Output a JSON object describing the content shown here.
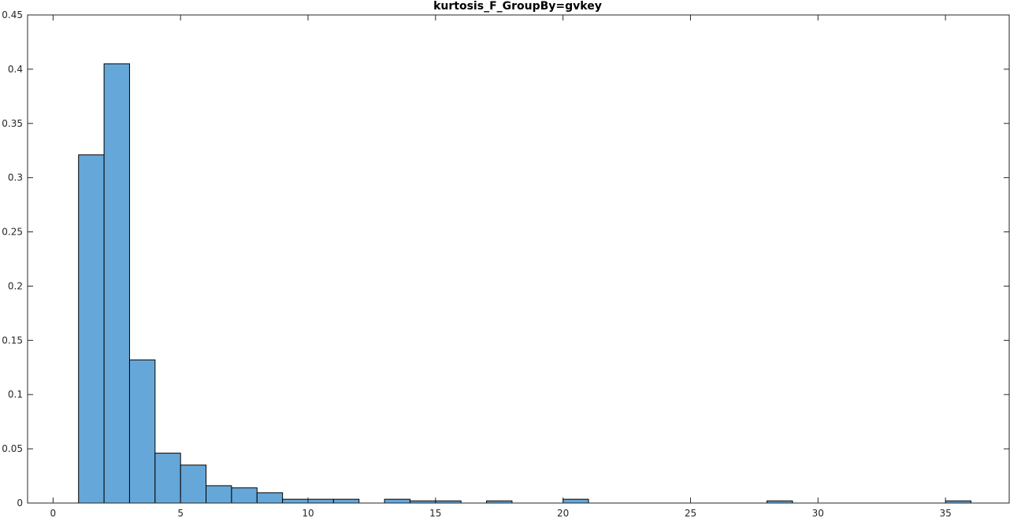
{
  "chart_data": {
    "type": "bar",
    "title": "kurtosis_F_GroupBy=gvkey",
    "xlabel": "",
    "ylabel": "",
    "xlim": [
      -1,
      37.5
    ],
    "ylim": [
      0,
      0.45
    ],
    "bin_width": 1,
    "bins": [
      {
        "start": 1,
        "value": 0.321
      },
      {
        "start": 2,
        "value": 0.405
      },
      {
        "start": 3,
        "value": 0.132
      },
      {
        "start": 4,
        "value": 0.046
      },
      {
        "start": 5,
        "value": 0.035
      },
      {
        "start": 6,
        "value": 0.016
      },
      {
        "start": 7,
        "value": 0.014
      },
      {
        "start": 8,
        "value": 0.0095
      },
      {
        "start": 9,
        "value": 0.0035
      },
      {
        "start": 10,
        "value": 0.0035
      },
      {
        "start": 11,
        "value": 0.0035
      },
      {
        "start": 13,
        "value": 0.0035
      },
      {
        "start": 14,
        "value": 0.002
      },
      {
        "start": 15,
        "value": 0.002
      },
      {
        "start": 17,
        "value": 0.002
      },
      {
        "start": 20,
        "value": 0.0035
      },
      {
        "start": 28,
        "value": 0.002
      },
      {
        "start": 35,
        "value": 0.002
      }
    ],
    "xticks": [
      0,
      5,
      10,
      15,
      20,
      25,
      30,
      35
    ],
    "xtick_labels": [
      "0",
      "5",
      "10",
      "15",
      "20",
      "25",
      "30",
      "35"
    ],
    "yticks": [
      0,
      0.05,
      0.1,
      0.15,
      0.2,
      0.25,
      0.3,
      0.35,
      0.4,
      0.45
    ],
    "ytick_labels": [
      "0",
      "0.05",
      "0.1",
      "0.15",
      "0.2",
      "0.25",
      "0.3",
      "0.35",
      "0.4",
      "0.45"
    ],
    "grid": false,
    "legend": false,
    "colors": {
      "bar_fill": "#66a7d9",
      "bar_edge": "#000000",
      "axis": "#262626"
    }
  }
}
